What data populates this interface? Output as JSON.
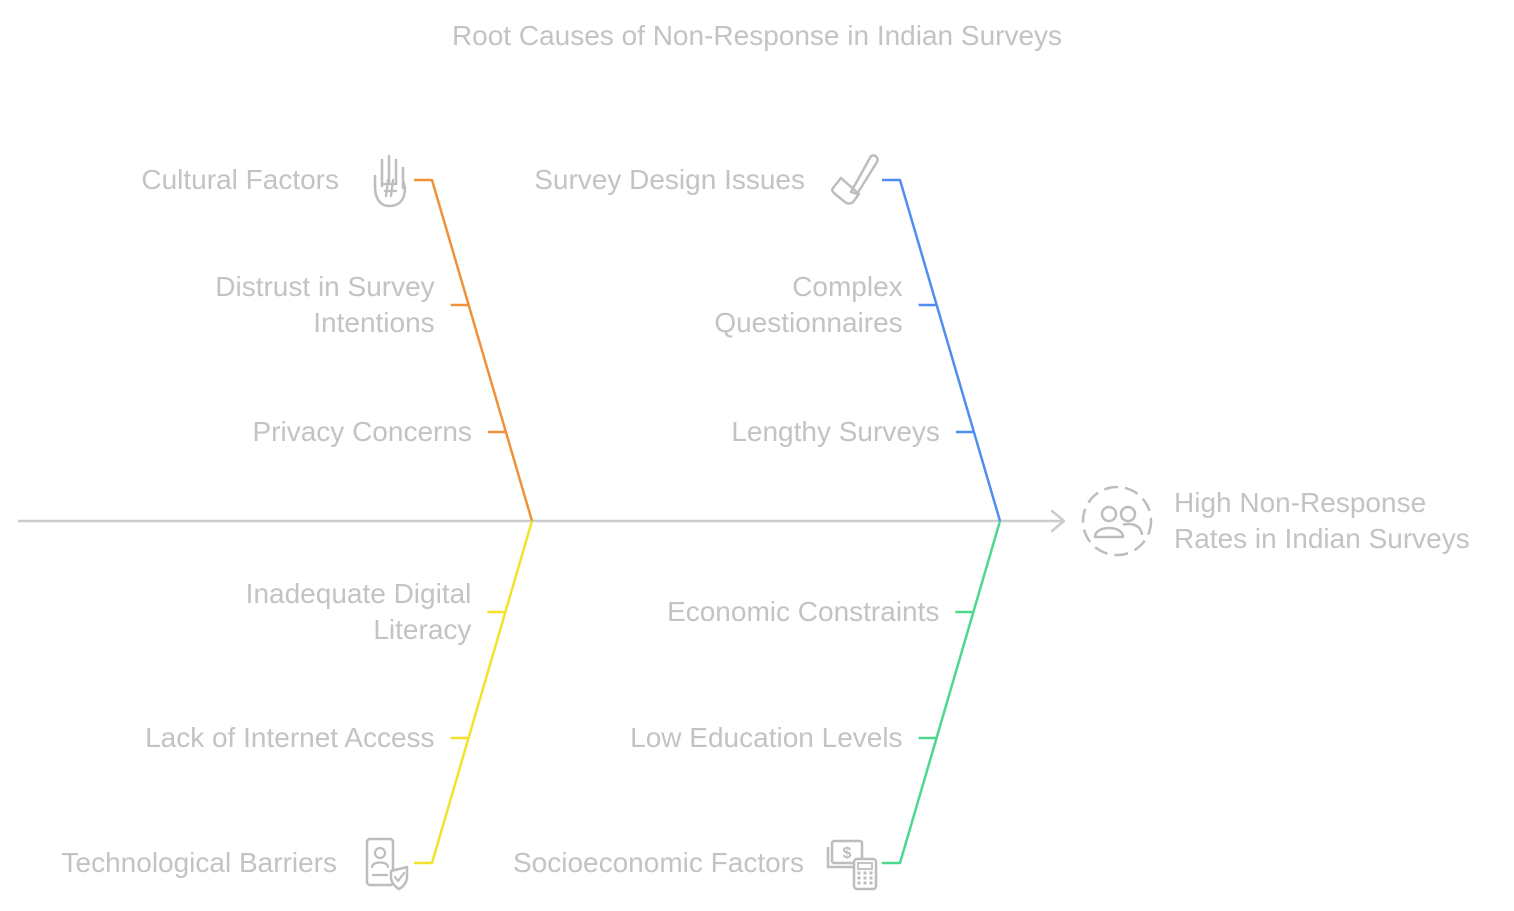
{
  "title": "Root Causes of Non-Response in Indian Surveys",
  "effect": {
    "lines": [
      "High Non-Response",
      "Rates in Indian Surveys"
    ],
    "icon": "users-icon"
  },
  "categories": [
    {
      "id": "cultural",
      "label": "Cultural Factors",
      "icon": "hand-icon",
      "color": "#f0913a",
      "causes": [
        [
          "Distrust in Survey",
          "Intentions"
        ],
        [
          "Privacy Concerns"
        ]
      ]
    },
    {
      "id": "survey-design",
      "label": "Survey Design Issues",
      "icon": "pencil-ruler-icon",
      "color": "#4f8ef0",
      "causes": [
        [
          "Complex",
          "Questionnaires"
        ],
        [
          "Lengthy Surveys"
        ]
      ]
    },
    {
      "id": "technological",
      "label": "Technological Barriers",
      "icon": "id-badge-check-icon",
      "color": "#f2e22e",
      "causes": [
        [
          "Inadequate Digital",
          "Literacy"
        ],
        [
          "Lack of Internet Access"
        ]
      ]
    },
    {
      "id": "socioeconomic",
      "label": "Socioeconomic Factors",
      "icon": "money-calculator-icon",
      "color": "#4cd98e",
      "causes": [
        [
          "Economic Constraints"
        ],
        [
          "Low Education Levels"
        ]
      ]
    }
  ],
  "colors": {
    "spine": "#cccccc",
    "text": "#c3c3c3"
  }
}
